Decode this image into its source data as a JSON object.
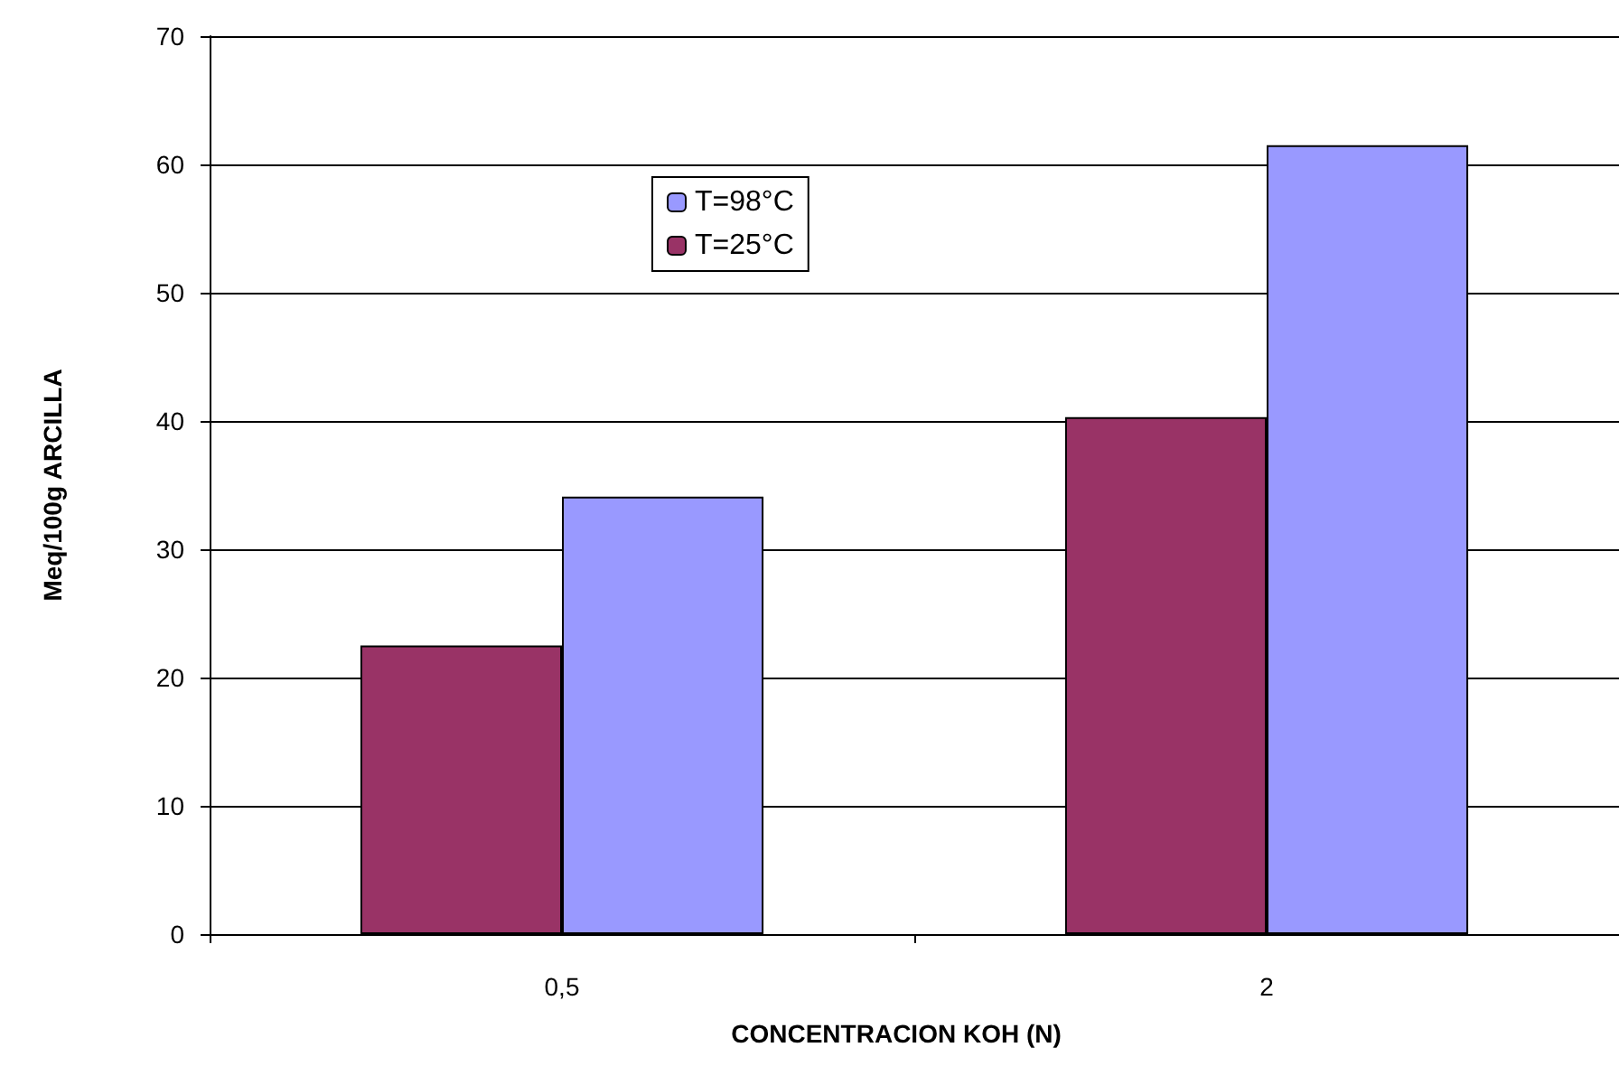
{
  "chart_data": {
    "type": "bar",
    "xlabel": "CONCENTRACION KOH (N)",
    "ylabel": "Meq/100g ARCILLA",
    "categories": [
      "0,5",
      "2"
    ],
    "series": [
      {
        "name": "T=25°C",
        "color": "#993366",
        "values": [
          22.5,
          40.3
        ]
      },
      {
        "name": "T=98°C",
        "color": "#9999ff",
        "values": [
          34.1,
          61.5
        ]
      }
    ],
    "ylim": [
      0,
      70
    ],
    "yticks": [
      0,
      10,
      20,
      30,
      40,
      50,
      60,
      70
    ],
    "grid": "y",
    "legend": "top"
  }
}
